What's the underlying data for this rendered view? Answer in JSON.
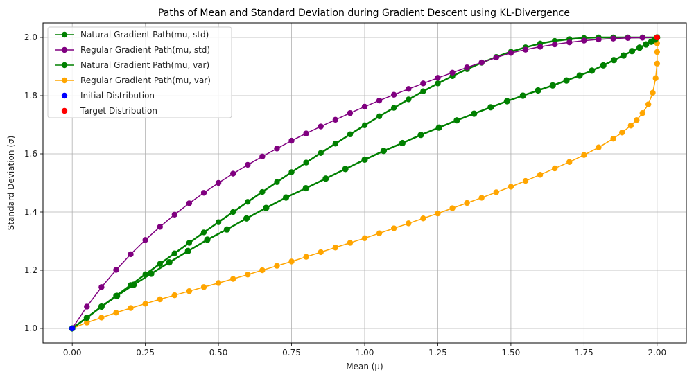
{
  "chart_data": {
    "type": "line",
    "title": "Paths of Mean and Standard Deviation during Gradient Descent using KL-Divergence",
    "xlabel": "Mean (μ)",
    "ylabel": "Standard Deviation (σ)",
    "xlim": [
      -0.1,
      2.1
    ],
    "ylim": [
      0.95,
      2.05
    ],
    "x_ticks": [
      0.0,
      0.25,
      0.5,
      0.75,
      1.0,
      1.25,
      1.5,
      1.75,
      2.0
    ],
    "x_tick_labels": [
      "0.00",
      "0.25",
      "0.50",
      "0.75",
      "1.00",
      "1.25",
      "1.50",
      "1.75",
      "2.00"
    ],
    "y_ticks": [
      1.0,
      1.2,
      1.4,
      1.6,
      1.8,
      2.0
    ],
    "y_tick_labels": [
      "1.0",
      "1.2",
      "1.4",
      "1.6",
      "1.8",
      "2.0"
    ],
    "grid": true,
    "legend_position": "top-left",
    "series": [
      {
        "name": "Natural Gradient Path(mu, std)",
        "color": "#008000",
        "marker": "circle",
        "x": [
          0.0,
          0.05,
          0.1,
          0.15,
          0.2,
          0.25,
          0.3,
          0.35,
          0.4,
          0.45,
          0.5,
          0.55,
          0.6,
          0.65,
          0.7,
          0.75,
          0.8,
          0.85,
          0.9,
          0.95,
          1.0,
          1.05,
          1.1,
          1.15,
          1.2,
          1.25,
          1.3,
          1.35,
          1.4,
          1.45,
          1.5,
          1.55,
          1.6,
          1.65,
          1.7,
          1.75,
          1.8,
          1.85,
          1.9,
          1.95,
          2.0
        ],
        "y": [
          1.0,
          1.037,
          1.075,
          1.112,
          1.149,
          1.186,
          1.222,
          1.258,
          1.294,
          1.33,
          1.365,
          1.4,
          1.435,
          1.469,
          1.503,
          1.537,
          1.57,
          1.603,
          1.635,
          1.667,
          1.698,
          1.729,
          1.758,
          1.787,
          1.815,
          1.842,
          1.867,
          1.891,
          1.913,
          1.933,
          1.951,
          1.966,
          1.979,
          1.988,
          1.994,
          1.998,
          2.0,
          2.0,
          2.0,
          2.0,
          2.0
        ]
      },
      {
        "name": "Regular Gradient Path(mu, std)",
        "color": "#800080",
        "marker": "circle",
        "x": [
          0.0,
          0.05,
          0.1,
          0.15,
          0.2,
          0.25,
          0.3,
          0.35,
          0.4,
          0.45,
          0.5,
          0.55,
          0.6,
          0.65,
          0.7,
          0.75,
          0.8,
          0.85,
          0.9,
          0.95,
          1.0,
          1.05,
          1.1,
          1.15,
          1.2,
          1.25,
          1.3,
          1.35,
          1.4,
          1.45,
          1.5,
          1.55,
          1.6,
          1.65,
          1.7,
          1.75,
          1.8,
          1.85,
          1.9,
          1.95,
          2.0
        ],
        "y": [
          1.0,
          1.075,
          1.142,
          1.201,
          1.255,
          1.304,
          1.349,
          1.391,
          1.43,
          1.466,
          1.5,
          1.532,
          1.562,
          1.591,
          1.618,
          1.645,
          1.67,
          1.694,
          1.717,
          1.74,
          1.762,
          1.783,
          1.803,
          1.823,
          1.842,
          1.861,
          1.879,
          1.897,
          1.914,
          1.931,
          1.947,
          1.958,
          1.968,
          1.976,
          1.983,
          1.989,
          1.993,
          1.996,
          1.998,
          1.999,
          2.0
        ]
      },
      {
        "name": "Natural Gradient Path(mu, var)",
        "color": "#008000",
        "marker": "circle",
        "x": [
          0.0,
          0.05,
          0.1,
          0.153,
          0.21,
          0.27,
          0.332,
          0.396,
          0.462,
          0.529,
          0.596,
          0.663,
          0.731,
          0.799,
          0.867,
          0.934,
          1.0,
          1.065,
          1.129,
          1.192,
          1.254,
          1.315,
          1.374,
          1.431,
          1.487,
          1.541,
          1.593,
          1.643,
          1.69,
          1.735,
          1.777,
          1.816,
          1.852,
          1.885,
          1.914,
          1.94,
          1.962,
          1.98,
          1.993,
          2.0
        ],
        "y": [
          1.0,
          1.037,
          1.075,
          1.112,
          1.15,
          1.188,
          1.227,
          1.266,
          1.305,
          1.34,
          1.378,
          1.414,
          1.45,
          1.482,
          1.515,
          1.548,
          1.58,
          1.61,
          1.637,
          1.665,
          1.69,
          1.715,
          1.738,
          1.76,
          1.781,
          1.8,
          1.818,
          1.835,
          1.852,
          1.869,
          1.886,
          1.904,
          1.922,
          1.938,
          1.953,
          1.965,
          1.976,
          1.985,
          1.993,
          2.0
        ]
      },
      {
        "name": "Regular Gradient Path(mu, var)",
        "color": "#ffa500",
        "marker": "circle",
        "x": [
          0.0,
          0.05,
          0.1,
          0.15,
          0.2,
          0.25,
          0.3,
          0.35,
          0.4,
          0.45,
          0.5,
          0.55,
          0.6,
          0.65,
          0.7,
          0.75,
          0.8,
          0.85,
          0.9,
          0.95,
          1.0,
          1.05,
          1.1,
          1.15,
          1.2,
          1.25,
          1.3,
          1.35,
          1.4,
          1.45,
          1.5,
          1.55,
          1.6,
          1.65,
          1.7,
          1.75,
          1.8,
          1.85,
          1.88,
          1.91,
          1.93,
          1.95,
          1.97,
          1.985,
          1.995,
          2.0,
          2.0,
          2.0,
          2.0
        ],
        "y": [
          1.0,
          1.02,
          1.037,
          1.054,
          1.07,
          1.085,
          1.1,
          1.114,
          1.128,
          1.142,
          1.156,
          1.17,
          1.185,
          1.2,
          1.215,
          1.23,
          1.246,
          1.262,
          1.278,
          1.294,
          1.31,
          1.327,
          1.344,
          1.361,
          1.378,
          1.395,
          1.413,
          1.431,
          1.449,
          1.468,
          1.487,
          1.507,
          1.528,
          1.55,
          1.572,
          1.596,
          1.622,
          1.652,
          1.673,
          1.697,
          1.716,
          1.74,
          1.77,
          1.81,
          1.86,
          1.91,
          1.95,
          1.98,
          2.0
        ]
      },
      {
        "name": "Initial Distribution",
        "color": "#0000ff",
        "marker": "circle",
        "x": [
          0.0
        ],
        "y": [
          1.0
        ]
      },
      {
        "name": "Target Distribution",
        "color": "#ff0000",
        "marker": "circle",
        "x": [
          2.0
        ],
        "y": [
          2.0
        ]
      }
    ]
  }
}
